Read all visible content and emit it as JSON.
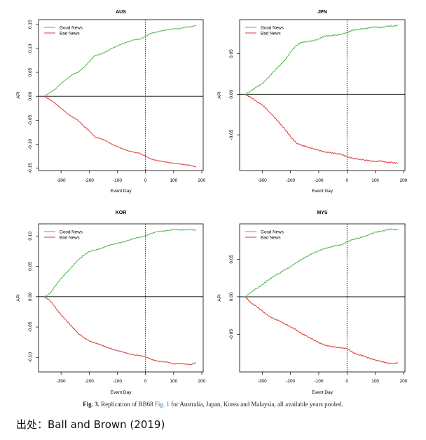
{
  "colors": {
    "good": "#4cb84c",
    "bad": "#d93b3b",
    "axis": "#000000",
    "link": "#2b6cb0"
  },
  "caption": {
    "figure_label": "Fig. 3.",
    "text_before_link": "Replication of BB68",
    "link_text": "Fig. 1",
    "text_after_link": "for Australia, Japan, Korea and Malaysia, all available years pooled."
  },
  "source_line": "出处：Ball and Brown (2019)",
  "chart_data": [
    {
      "type": "line",
      "title": "AUS",
      "xlabel": "Event Day",
      "ylabel": "API",
      "xlim": [
        -380,
        205
      ],
      "ylim": [
        -0.155,
        0.16
      ],
      "xticks": [
        -300,
        -200,
        -100,
        0,
        100,
        200
      ],
      "xtick_labels": [
        "-300",
        "-200",
        "-100",
        "0",
        "100",
        "200"
      ],
      "yticks": [
        -0.15,
        -0.1,
        -0.05,
        0.0,
        0.05,
        0.1,
        0.15
      ],
      "ytick_labels": [
        "-0.15",
        "-0.10",
        "-0.05",
        "0.00",
        "0.05",
        "0.10",
        "0.15"
      ],
      "event_line_x": 0,
      "zero_line_y": 0,
      "legend": {
        "position": "top-left",
        "entries": [
          "Good News",
          "Bad News"
        ]
      },
      "series": [
        {
          "name": "Good News",
          "x": [
            -360,
            -340,
            -320,
            -300,
            -280,
            -260,
            -240,
            -220,
            -200,
            -180,
            -160,
            -140,
            -120,
            -100,
            -80,
            -60,
            -40,
            -20,
            0,
            20,
            40,
            60,
            80,
            100,
            120,
            140,
            160,
            180
          ],
          "values": [
            0.0,
            0.007,
            0.015,
            0.027,
            0.036,
            0.045,
            0.05,
            0.06,
            0.072,
            0.085,
            0.088,
            0.093,
            0.1,
            0.105,
            0.11,
            0.114,
            0.118,
            0.119,
            0.125,
            0.132,
            0.134,
            0.137,
            0.139,
            0.141,
            0.141,
            0.144,
            0.145,
            0.148
          ]
        },
        {
          "name": "Bad News",
          "x": [
            -360,
            -340,
            -320,
            -300,
            -280,
            -260,
            -240,
            -220,
            -200,
            -180,
            -160,
            -140,
            -120,
            -100,
            -80,
            -60,
            -40,
            -20,
            0,
            20,
            40,
            60,
            80,
            100,
            120,
            140,
            160,
            180
          ],
          "values": [
            0.0,
            -0.007,
            -0.015,
            -0.025,
            -0.035,
            -0.043,
            -0.05,
            -0.062,
            -0.072,
            -0.085,
            -0.088,
            -0.093,
            -0.1,
            -0.105,
            -0.11,
            -0.114,
            -0.117,
            -0.119,
            -0.125,
            -0.131,
            -0.134,
            -0.136,
            -0.138,
            -0.14,
            -0.141,
            -0.143,
            -0.144,
            -0.148
          ]
        }
      ]
    },
    {
      "type": "line",
      "title": "JPN",
      "xlabel": "Event Day",
      "ylabel": "API",
      "xlim": [
        -380,
        205
      ],
      "ylim": [
        -0.094,
        0.092
      ],
      "xticks": [
        -300,
        -200,
        -100,
        0,
        100,
        200
      ],
      "xtick_labels": [
        "-300",
        "-200",
        "-100",
        "0",
        "100",
        "200"
      ],
      "yticks": [
        -0.05,
        0.0,
        0.05
      ],
      "ytick_labels": [
        "-0.05",
        "0.00",
        "0.05"
      ],
      "event_line_x": 0,
      "zero_line_y": 0,
      "legend": {
        "position": "top-left",
        "entries": [
          "Good News",
          "Bad News"
        ]
      },
      "series": [
        {
          "name": "Good News",
          "x": [
            -360,
            -340,
            -320,
            -300,
            -280,
            -260,
            -240,
            -220,
            -200,
            -180,
            -160,
            -140,
            -120,
            -100,
            -80,
            -60,
            -40,
            -20,
            0,
            20,
            40,
            60,
            80,
            100,
            120,
            140,
            160,
            180
          ],
          "values": [
            0.0,
            0.004,
            0.009,
            0.013,
            0.02,
            0.028,
            0.035,
            0.042,
            0.052,
            0.06,
            0.064,
            0.065,
            0.066,
            0.068,
            0.072,
            0.072,
            0.073,
            0.074,
            0.076,
            0.079,
            0.08,
            0.081,
            0.082,
            0.083,
            0.082,
            0.084,
            0.084,
            0.085
          ]
        },
        {
          "name": "Bad News",
          "x": [
            -360,
            -340,
            -320,
            -300,
            -280,
            -260,
            -240,
            -220,
            -200,
            -180,
            -160,
            -140,
            -120,
            -100,
            -80,
            -60,
            -40,
            -20,
            0,
            20,
            40,
            60,
            80,
            100,
            120,
            140,
            160,
            180
          ],
          "values": [
            0.0,
            -0.004,
            -0.009,
            -0.013,
            -0.02,
            -0.027,
            -0.035,
            -0.043,
            -0.052,
            -0.06,
            -0.063,
            -0.065,
            -0.067,
            -0.069,
            -0.071,
            -0.072,
            -0.073,
            -0.074,
            -0.077,
            -0.079,
            -0.08,
            -0.081,
            -0.082,
            -0.083,
            -0.082,
            -0.084,
            -0.084,
            -0.085
          ]
        }
      ]
    },
    {
      "type": "line",
      "title": "KOR",
      "xlabel": "Event Day",
      "ylabel": "API",
      "xlim": [
        -380,
        205
      ],
      "ylim": [
        -0.124,
        0.12
      ],
      "xticks": [
        -300,
        -200,
        -100,
        0,
        100,
        200
      ],
      "xtick_labels": [
        "-300",
        "-200",
        "-100",
        "0",
        "100",
        "200"
      ],
      "yticks": [
        -0.1,
        -0.05,
        0.0,
        0.05,
        0.1
      ],
      "ytick_labels": [
        "-0.10",
        "-0.05",
        "0.00",
        "0.05",
        "0.10"
      ],
      "event_line_x": 0,
      "zero_line_y": 0,
      "legend": {
        "position": "top-left",
        "entries": [
          "Good News",
          "Bad News"
        ]
      },
      "series": [
        {
          "name": "Good News",
          "x": [
            -360,
            -340,
            -320,
            -300,
            -280,
            -260,
            -240,
            -220,
            -200,
            -180,
            -160,
            -140,
            -120,
            -100,
            -80,
            -60,
            -40,
            -20,
            0,
            20,
            40,
            60,
            80,
            100,
            120,
            140,
            160,
            180
          ],
          "values": [
            0.0,
            0.005,
            0.018,
            0.03,
            0.04,
            0.05,
            0.06,
            0.068,
            0.074,
            0.077,
            0.079,
            0.083,
            0.086,
            0.088,
            0.09,
            0.093,
            0.096,
            0.098,
            0.1,
            0.104,
            0.107,
            0.108,
            0.109,
            0.111,
            0.11,
            0.11,
            0.111,
            0.109
          ]
        },
        {
          "name": "Bad News",
          "x": [
            -360,
            -340,
            -320,
            -300,
            -280,
            -260,
            -240,
            -220,
            -200,
            -180,
            -160,
            -140,
            -120,
            -100,
            -80,
            -60,
            -40,
            -20,
            0,
            20,
            40,
            60,
            80,
            100,
            120,
            140,
            160,
            180
          ],
          "values": [
            0.0,
            -0.006,
            -0.018,
            -0.03,
            -0.04,
            -0.05,
            -0.06,
            -0.067,
            -0.073,
            -0.076,
            -0.079,
            -0.083,
            -0.086,
            -0.089,
            -0.091,
            -0.094,
            -0.096,
            -0.097,
            -0.099,
            -0.103,
            -0.106,
            -0.107,
            -0.108,
            -0.111,
            -0.11,
            -0.111,
            -0.112,
            -0.109
          ]
        }
      ]
    },
    {
      "type": "line",
      "title": "MYS",
      "xlabel": "Event Day",
      "ylabel": "API",
      "xlim": [
        -380,
        205
      ],
      "ylim": [
        -0.1,
        0.097
      ],
      "xticks": [
        -300,
        -200,
        -100,
        0,
        100,
        200
      ],
      "xtick_labels": [
        "-300",
        "-200",
        "-100",
        "0",
        "100",
        "200"
      ],
      "yticks": [
        -0.05,
        0.0,
        0.05
      ],
      "ytick_labels": [
        "-0.05",
        "0.00",
        "0.05"
      ],
      "event_line_x": 0,
      "zero_line_y": 0,
      "legend": {
        "position": "top-left",
        "entries": [
          "Good News",
          "Bad News"
        ]
      },
      "series": [
        {
          "name": "Good News",
          "x": [
            -360,
            -340,
            -320,
            -300,
            -280,
            -260,
            -240,
            -220,
            -200,
            -180,
            -160,
            -140,
            -120,
            -100,
            -80,
            -60,
            -40,
            -20,
            0,
            20,
            40,
            60,
            80,
            100,
            120,
            140,
            160,
            180
          ],
          "values": [
            0.0,
            0.006,
            0.011,
            0.016,
            0.022,
            0.027,
            0.031,
            0.036,
            0.04,
            0.045,
            0.05,
            0.054,
            0.058,
            0.061,
            0.064,
            0.066,
            0.068,
            0.069,
            0.073,
            0.076,
            0.078,
            0.08,
            0.083,
            0.086,
            0.087,
            0.089,
            0.09,
            0.089
          ]
        },
        {
          "name": "Bad News",
          "x": [
            -360,
            -340,
            -320,
            -300,
            -280,
            -260,
            -240,
            -220,
            -200,
            -180,
            -160,
            -140,
            -120,
            -100,
            -80,
            -60,
            -40,
            -20,
            0,
            20,
            40,
            60,
            80,
            100,
            120,
            140,
            160,
            180
          ],
          "values": [
            0.0,
            -0.008,
            -0.013,
            -0.019,
            -0.025,
            -0.029,
            -0.032,
            -0.036,
            -0.04,
            -0.044,
            -0.049,
            -0.053,
            -0.057,
            -0.061,
            -0.064,
            -0.066,
            -0.067,
            -0.068,
            -0.069,
            -0.074,
            -0.077,
            -0.079,
            -0.082,
            -0.084,
            -0.086,
            -0.088,
            -0.089,
            -0.088
          ]
        }
      ]
    }
  ]
}
